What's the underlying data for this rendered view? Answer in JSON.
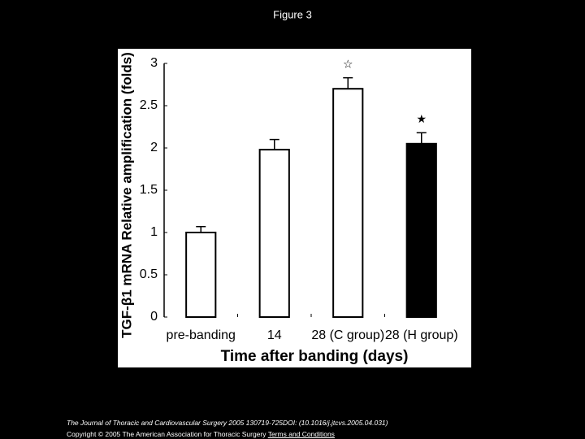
{
  "figure_title": "Figure 3",
  "chart_data": {
    "type": "bar",
    "ylabel": "TGF-β1 mRNA Relative amplification (folds)",
    "xlabel": "Time after banding (days)",
    "categories": [
      "pre-banding",
      "14",
      "28 (C group)",
      "28 (H group)"
    ],
    "values": [
      1.0,
      1.98,
      2.7,
      2.05
    ],
    "errors": [
      0.07,
      0.12,
      0.13,
      0.13
    ],
    "colors": [
      "#ffffff",
      "#ffffff",
      "#ffffff",
      "#000000"
    ],
    "annotations": [
      null,
      null,
      "☆",
      "★"
    ],
    "ylim": [
      0,
      3
    ],
    "yticks": [
      0,
      0.5,
      1,
      1.5,
      2,
      2.5,
      3
    ]
  },
  "footer": {
    "citation": "The Journal of Thoracic and Cardiovascular Surgery 2005 130719-725DOI: (10.1016/j.jtcvs.2005.04.031)",
    "copyright": "Copyright © 2005 The American Association for Thoracic Surgery",
    "link": "Terms and Conditions"
  }
}
